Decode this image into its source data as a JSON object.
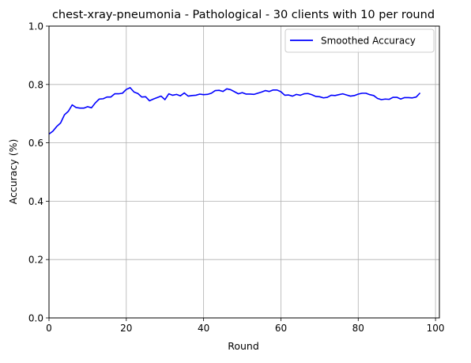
{
  "chart_data": {
    "type": "line",
    "title": "chest-xray-pneumonia - Pathological - 30 clients with 10 per round",
    "xlabel": "Round",
    "ylabel": "Accuracy (%)",
    "xlim": [
      0,
      101
    ],
    "ylim": [
      0,
      1.0
    ],
    "xticks": [
      0,
      20,
      40,
      60,
      80,
      100
    ],
    "xtick_labels": [
      "0",
      "20",
      "40",
      "60",
      "80",
      "100"
    ],
    "yticks": [
      0,
      0.2,
      0.4,
      0.6,
      0.8,
      1.0
    ],
    "ytick_labels": [
      "0.0",
      "0.2",
      "0.4",
      "0.6",
      "0.8",
      "1.0"
    ],
    "grid": true,
    "legend_position": "top-right",
    "series": [
      {
        "name": "Smoothed Accuracy",
        "color": "#0000ff",
        "x": [
          0,
          1,
          2,
          3,
          4,
          5,
          6,
          7,
          8,
          9,
          10,
          11,
          12,
          13,
          14,
          15,
          16,
          17,
          18,
          19,
          20,
          21,
          22,
          23,
          24,
          25,
          26,
          27,
          28,
          29,
          30,
          31,
          32,
          33,
          34,
          35,
          36,
          37,
          38,
          39,
          40,
          41,
          42,
          43,
          44,
          45,
          46,
          47,
          48,
          49,
          50,
          51,
          52,
          53,
          54,
          55,
          56,
          57,
          58,
          59,
          60,
          61,
          62,
          63,
          64,
          65,
          66,
          67,
          68,
          69,
          70,
          71,
          72,
          73,
          74,
          75,
          76,
          77,
          78,
          79,
          80,
          81,
          82,
          83,
          84,
          85,
          86,
          87,
          88,
          89,
          90,
          91,
          92,
          93,
          94,
          95,
          96
        ],
        "y": [
          0.63,
          0.64,
          0.656,
          0.668,
          0.696,
          0.708,
          0.73,
          0.721,
          0.719,
          0.719,
          0.724,
          0.72,
          0.737,
          0.75,
          0.751,
          0.757,
          0.757,
          0.768,
          0.768,
          0.77,
          0.783,
          0.789,
          0.774,
          0.769,
          0.757,
          0.758,
          0.744,
          0.75,
          0.755,
          0.76,
          0.748,
          0.768,
          0.763,
          0.766,
          0.761,
          0.771,
          0.76,
          0.762,
          0.763,
          0.767,
          0.765,
          0.766,
          0.77,
          0.779,
          0.78,
          0.776,
          0.785,
          0.782,
          0.775,
          0.768,
          0.772,
          0.767,
          0.767,
          0.766,
          0.77,
          0.774,
          0.779,
          0.776,
          0.781,
          0.781,
          0.775,
          0.763,
          0.764,
          0.76,
          0.766,
          0.763,
          0.768,
          0.769,
          0.765,
          0.759,
          0.758,
          0.754,
          0.756,
          0.763,
          0.762,
          0.765,
          0.768,
          0.764,
          0.76,
          0.762,
          0.767,
          0.77,
          0.77,
          0.765,
          0.762,
          0.752,
          0.748,
          0.75,
          0.749,
          0.756,
          0.756,
          0.75,
          0.755,
          0.755,
          0.754,
          0.757,
          0.771
        ]
      }
    ]
  }
}
